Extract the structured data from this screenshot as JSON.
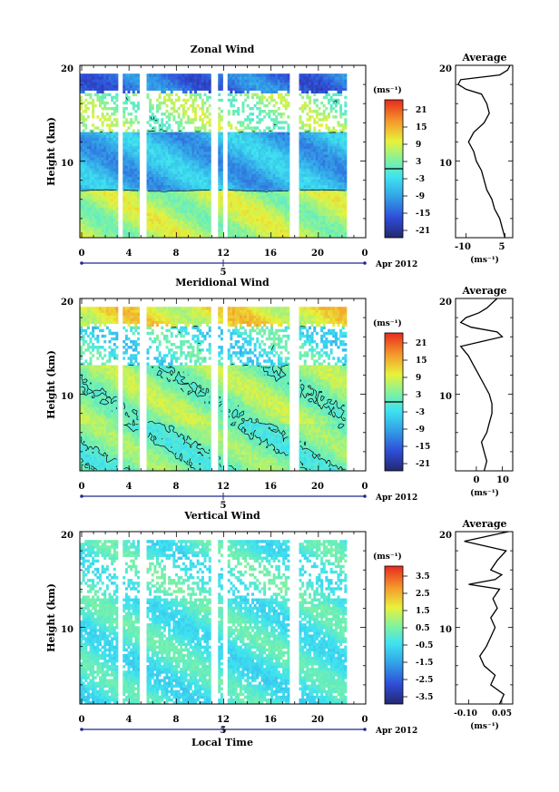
{
  "chart_data": [
    {
      "type": "heatmap",
      "title": "Zonal Wind",
      "ylabel": "Height (km)",
      "ylim": [
        2,
        20
      ],
      "xlim": [
        0,
        24
      ],
      "x_ticks": [
        "0",
        "4",
        "8",
        "12",
        "16",
        "20",
        "0"
      ],
      "y_ticks": [
        "10",
        "20"
      ],
      "date_marker": "5",
      "date_label": "Apr 2012",
      "colorbar": {
        "unit": "(ms⁻¹)",
        "ticks": [
          "21",
          "15",
          "9",
          "3",
          "-3",
          "-9",
          "-15",
          "-21"
        ],
        "range": [
          -24,
          24
        ]
      },
      "pattern": {
        "surface": 6,
        "jet": -8,
        "upper": 4,
        "top": -14,
        "amp": 4
      },
      "average_profile": {
        "title": "Average",
        "xlabel": "(ms⁻¹)",
        "x_ticks": [
          "-10",
          "5"
        ],
        "xlim": [
          -14,
          8
        ],
        "y_ticks": [
          "10",
          "20"
        ],
        "heights_km": [
          2,
          3,
          4,
          5,
          6,
          7,
          8,
          9,
          10,
          11,
          12,
          13,
          14,
          15,
          16,
          17,
          17.5,
          18,
          18.5,
          19,
          19.5,
          20
        ],
        "values": [
          5,
          4,
          3,
          1,
          0,
          -2,
          -3,
          -4,
          -6,
          -7,
          -9,
          -7,
          -3,
          -1,
          -2,
          -4,
          -10,
          -13,
          -12,
          3,
          6,
          7
        ]
      }
    },
    {
      "type": "heatmap",
      "title": "Meridional Wind",
      "ylabel": "Height (km)",
      "ylim": [
        2,
        20
      ],
      "xlim": [
        0,
        24
      ],
      "x_ticks": [
        "0",
        "4",
        "8",
        "12",
        "16",
        "20",
        "0"
      ],
      "y_ticks": [
        "10",
        "20"
      ],
      "date_marker": "5",
      "date_label": "Apr 2012",
      "colorbar": {
        "unit": "(ms⁻¹)",
        "ticks": [
          "21",
          "15",
          "9",
          "3",
          "-3",
          "-9",
          "-15",
          "-21"
        ],
        "range": [
          -24,
          24
        ]
      },
      "pattern": {
        "surface": 2,
        "jet": 4,
        "upper": -2,
        "top": 10,
        "amp": 4
      },
      "average_profile": {
        "title": "Average",
        "xlabel": "(ms⁻¹)",
        "x_ticks": [
          "0",
          "10"
        ],
        "xlim": [
          -8,
          14
        ],
        "y_ticks": [
          "10",
          "20"
        ],
        "heights_km": [
          2,
          3,
          4,
          5,
          6,
          7,
          8,
          9,
          10,
          11,
          12,
          13,
          14,
          15,
          15.5,
          16,
          16.5,
          17,
          17.5,
          18,
          18.5,
          19,
          20
        ],
        "values": [
          3,
          4,
          3,
          2,
          4,
          5,
          6,
          6,
          5,
          3,
          1,
          -1,
          -3,
          -6,
          2,
          10,
          8,
          -2,
          -6,
          -4,
          1,
          4,
          8
        ]
      }
    },
    {
      "type": "heatmap",
      "title": "Vertical Wind",
      "ylabel": "Height (km)",
      "xlabel": "Local Time",
      "ylim": [
        2,
        20
      ],
      "xlim": [
        0,
        24
      ],
      "x_ticks": [
        "0",
        "4",
        "8",
        "12",
        "16",
        "20",
        "0"
      ],
      "y_ticks": [
        "10",
        "20"
      ],
      "date_marker": "5",
      "date_label": "Apr 2012",
      "colorbar": {
        "unit": "(ms⁻¹)",
        "ticks": [
          "3.5",
          "2.5",
          "1.5",
          "0.5",
          "-0.5",
          "-1.5",
          "-2.5",
          "-3.5"
        ],
        "range": [
          -4,
          4
        ]
      },
      "pattern": {
        "surface": -0.3,
        "jet": -0.2,
        "upper": -0.1,
        "top": -0.2,
        "amp": 0.5
      },
      "average_profile": {
        "title": "Average",
        "xlabel": "(ms⁻¹)",
        "x_ticks": [
          "-0.10",
          "0.05"
        ],
        "xlim": [
          -0.16,
          0.1
        ],
        "y_ticks": [
          "10",
          "20"
        ],
        "heights_km": [
          2,
          3,
          4,
          5,
          6,
          7,
          8,
          9,
          10,
          11,
          12,
          13,
          14,
          14.5,
          15,
          15.5,
          16,
          17,
          18,
          19,
          20
        ],
        "values": [
          0.04,
          0.06,
          0.0,
          0.02,
          -0.03,
          -0.05,
          -0.02,
          0.0,
          0.02,
          0.0,
          0.03,
          0.01,
          0.04,
          -0.1,
          0.02,
          0.05,
          0.0,
          0.03,
          0.07,
          -0.12,
          0.08
        ]
      }
    }
  ]
}
